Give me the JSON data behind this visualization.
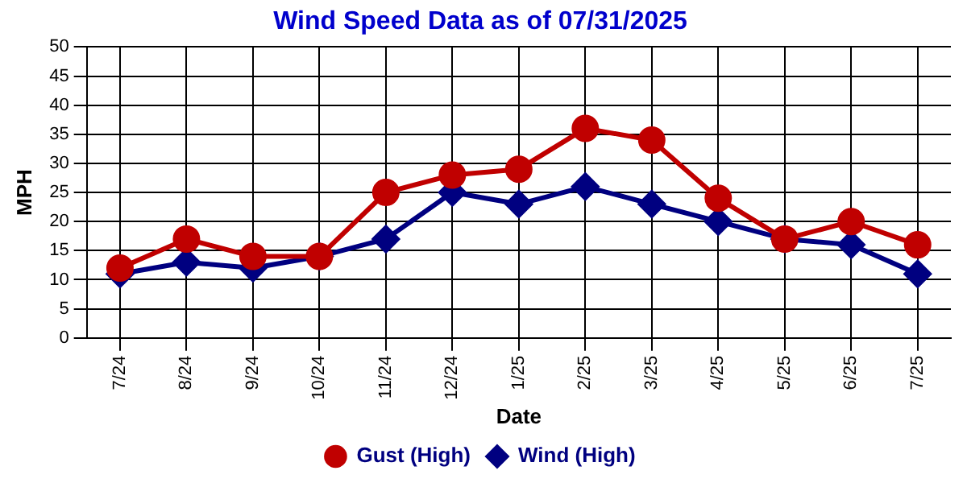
{
  "chart_data": {
    "type": "line",
    "title": "Wind Speed Data as of 07/31/2025",
    "xlabel": "Date",
    "ylabel": "MPH",
    "categories": [
      "7/24",
      "8/24",
      "9/24",
      "10/24",
      "11/24",
      "12/24",
      "1/25",
      "2/25",
      "3/25",
      "4/25",
      "5/25",
      "6/25",
      "7/25"
    ],
    "series": [
      {
        "name": "Wind (High)",
        "color": "#000080",
        "marker": "diamond",
        "values": [
          11,
          13,
          12,
          14,
          17,
          25,
          23,
          26,
          23,
          20,
          17,
          16,
          11
        ]
      },
      {
        "name": "Gust (High)",
        "color": "#c00000",
        "marker": "circle",
        "values": [
          12,
          17,
          14,
          14,
          25,
          28,
          29,
          36,
          34,
          24,
          17,
          20,
          16
        ]
      }
    ],
    "ylim": [
      0,
      50
    ],
    "yticks": [
      0,
      5,
      10,
      15,
      20,
      25,
      30,
      35,
      40,
      45,
      50
    ],
    "grid": true,
    "legend": "bottom",
    "line_style": "solid"
  }
}
